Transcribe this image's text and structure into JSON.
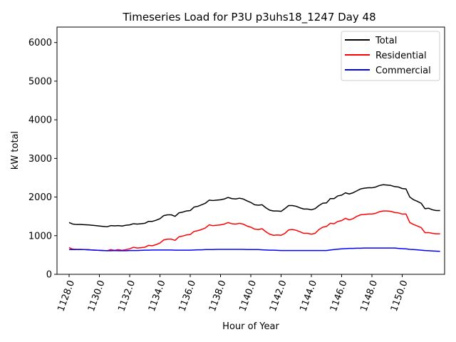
{
  "chart_data": {
    "type": "line",
    "title": "Timeseries Load for P3U p3uhs18_1247  Day 48",
    "xlabel": "Hour of Year",
    "ylabel": "kW total",
    "xlim": [
      1127.2,
      1152.8
    ],
    "ylim": [
      0,
      6400
    ],
    "x_ticks": [
      1128,
      1130,
      1132,
      1134,
      1136,
      1138,
      1140,
      1142,
      1144,
      1146,
      1148,
      1150
    ],
    "x_tick_labels": [
      "1128.0",
      "1130.0",
      "1132.0",
      "1134.0",
      "1136.0",
      "1138.0",
      "1140.0",
      "1142.0",
      "1144.0",
      "1146.0",
      "1148.0",
      "1150.0"
    ],
    "y_ticks": [
      0,
      1000,
      2000,
      3000,
      4000,
      5000,
      6000
    ],
    "y_tick_labels": [
      "0",
      "1000",
      "2000",
      "3000",
      "4000",
      "5000",
      "6000"
    ],
    "legend_position": "top-right",
    "x_start": 1128,
    "x_step": 0.25,
    "series": [
      {
        "name": "Total",
        "color": "#000000",
        "values": [
          1340,
          1300,
          1290,
          1290,
          1285,
          1280,
          1270,
          1260,
          1250,
          1240,
          1230,
          1260,
          1255,
          1260,
          1250,
          1270,
          1280,
          1310,
          1300,
          1310,
          1320,
          1370,
          1370,
          1400,
          1440,
          1520,
          1540,
          1540,
          1500,
          1590,
          1610,
          1640,
          1650,
          1740,
          1760,
          1800,
          1840,
          1920,
          1910,
          1920,
          1930,
          1950,
          1990,
          1960,
          1950,
          1970,
          1950,
          1900,
          1860,
          1800,
          1790,
          1800,
          1720,
          1660,
          1640,
          1640,
          1630,
          1700,
          1780,
          1780,
          1760,
          1720,
          1690,
          1690,
          1670,
          1700,
          1780,
          1840,
          1850,
          1960,
          1960,
          2030,
          2050,
          2110,
          2080,
          2110,
          2160,
          2210,
          2230,
          2240,
          2240,
          2260,
          2300,
          2320,
          2310,
          2300,
          2270,
          2260,
          2220,
          2210,
          2000,
          1930,
          1890,
          1840,
          1700,
          1710,
          1670,
          1650,
          1650
        ]
      },
      {
        "name": "Residential",
        "color": "#ff0000",
        "values": [
          690,
          650,
          645,
          645,
          640,
          640,
          630,
          625,
          620,
          615,
          610,
          640,
          620,
          640,
          620,
          640,
          660,
          700,
          680,
          690,
          700,
          750,
          740,
          770,
          810,
          890,
          910,
          910,
          880,
          970,
          990,
          1020,
          1030,
          1110,
          1130,
          1160,
          1200,
          1280,
          1260,
          1270,
          1280,
          1300,
          1340,
          1310,
          1300,
          1320,
          1300,
          1250,
          1220,
          1170,
          1160,
          1180,
          1100,
          1040,
          1010,
          1020,
          1010,
          1060,
          1150,
          1160,
          1140,
          1100,
          1060,
          1060,
          1040,
          1060,
          1160,
          1220,
          1240,
          1320,
          1310,
          1370,
          1390,
          1450,
          1410,
          1440,
          1500,
          1540,
          1550,
          1560,
          1560,
          1580,
          1620,
          1640,
          1640,
          1630,
          1600,
          1590,
          1560,
          1560,
          1340,
          1290,
          1250,
          1210,
          1080,
          1080,
          1060,
          1050,
          1050
        ]
      },
      {
        "name": "Commercial",
        "color": "#0000ff",
        "values": [
          640,
          640,
          640,
          640,
          640,
          635,
          630,
          625,
          620,
          615,
          610,
          610,
          615,
          610,
          610,
          610,
          615,
          615,
          615,
          620,
          625,
          625,
          630,
          630,
          630,
          630,
          630,
          630,
          625,
          625,
          625,
          625,
          625,
          630,
          635,
          635,
          640,
          640,
          640,
          645,
          645,
          645,
          645,
          645,
          645,
          645,
          645,
          640,
          640,
          640,
          640,
          635,
          630,
          625,
          625,
          620,
          615,
          615,
          615,
          615,
          615,
          615,
          615,
          615,
          615,
          615,
          615,
          615,
          615,
          630,
          640,
          650,
          660,
          665,
          670,
          670,
          675,
          675,
          680,
          680,
          680,
          680,
          680,
          680,
          680,
          680,
          680,
          670,
          665,
          660,
          645,
          640,
          635,
          625,
          615,
          610,
          605,
          600,
          595
        ]
      }
    ]
  }
}
